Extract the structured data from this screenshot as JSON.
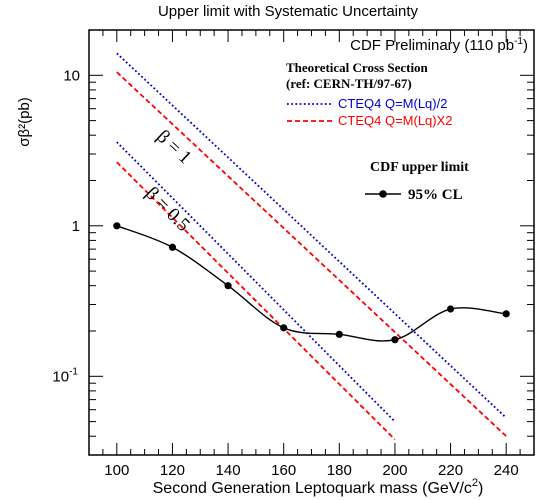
{
  "chart_data": {
    "type": "line",
    "title": "Upper limit with Systematic Uncertainty",
    "preliminary": "CDF Preliminary (110 pb",
    "preliminary_sup": "-1",
    "preliminary_end": ")",
    "xlabel": "Second Generation Leptoquark mass (GeV/c",
    "xlabel_sup": "2",
    "xlabel_end": ")",
    "ylabel": "σβ²(pb)",
    "xlim": [
      90,
      250
    ],
    "ylim": [
      0.03,
      20
    ],
    "yscale": "log",
    "x_ticks": [
      "100",
      "120",
      "140",
      "160",
      "180",
      "200",
      "220",
      "240"
    ],
    "y_ticks": [
      {
        "value": 10,
        "label": "10"
      },
      {
        "value": 1,
        "label": "1"
      },
      {
        "value": 0.1,
        "base": "10",
        "exp": "-1"
      }
    ],
    "theory_legend": {
      "title": "Theoretical Cross Section",
      "ref": "(ref: CERN-TH/97-67)"
    },
    "limit_legend": {
      "title": "CDF upper limit",
      "entry": "95% CL"
    },
    "beta_labels": [
      {
        "text": "β = 1",
        "x": 114,
        "y": 3.85
      },
      {
        "text": "β = 0.5",
        "x": 110,
        "y": 1.62
      }
    ],
    "series": [
      {
        "name": "CTEQ4 Q=M(Lq)/2",
        "color": "#0000cc",
        "style": "dotted",
        "group": "β = 1",
        "x": [
          100,
          240
        ],
        "y": [
          14,
          0.053
        ]
      },
      {
        "name": "CTEQ4 Q=M(Lq)X2",
        "color": "#ff0000",
        "style": "dashed",
        "group": "β = 1",
        "x": [
          100,
          240
        ],
        "y": [
          10.5,
          0.04
        ]
      },
      {
        "name": "CTEQ4 Q=M(Lq)/2",
        "color": "#0000cc",
        "style": "dotted",
        "group": "β = 0.5",
        "x": [
          100,
          200
        ],
        "y": [
          3.6,
          0.05
        ]
      },
      {
        "name": "CTEQ4 Q=M(Lq)X2",
        "color": "#ff0000",
        "style": "dashed",
        "group": "β = 0.5",
        "x": [
          100,
          200
        ],
        "y": [
          2.65,
          0.038
        ]
      },
      {
        "name": "95% CL",
        "color": "#000000",
        "style": "solid-markers",
        "x": [
          100,
          120,
          140,
          160,
          180,
          200,
          220,
          240
        ],
        "y": [
          1.0,
          0.72,
          0.4,
          0.21,
          0.19,
          0.175,
          0.28,
          0.26
        ]
      }
    ],
    "legend_position": "top-right",
    "grid": false
  }
}
